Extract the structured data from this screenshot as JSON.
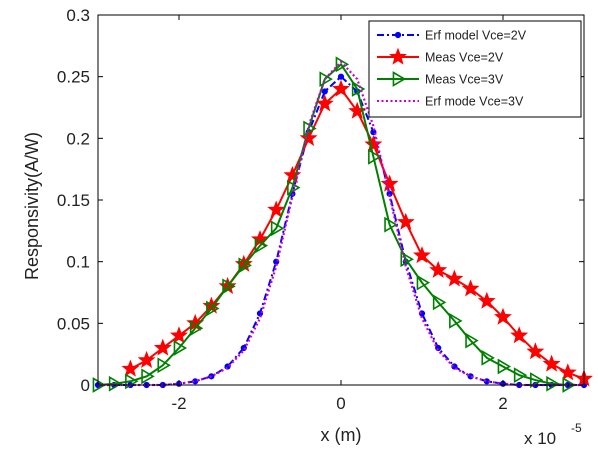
{
  "chart_data": {
    "type": "line",
    "xlabel": "x (m)",
    "ylabel": "Responsivity(A/W)",
    "x_multiplier_label": "x 10",
    "x_multiplier_exponent": "-5",
    "xlim": [
      -3,
      3
    ],
    "ylim": [
      0,
      0.3
    ],
    "x_ticks": [
      -2,
      0,
      2
    ],
    "x_tick_labels": [
      "-2",
      "0",
      "2"
    ],
    "y_ticks": [
      0,
      0.05,
      0.1,
      0.15,
      0.2,
      0.25,
      0.3
    ],
    "y_tick_labels": [
      "0",
      "0.05",
      "0.1",
      "0.15",
      "0.2",
      "0.25",
      "0.3"
    ],
    "grid": false,
    "legend_position": "top-right",
    "series": [
      {
        "name": "Erf model Vce=2V",
        "color": "#0000ff",
        "line_style": "dash-dot",
        "marker": "dot",
        "x": [
          -3.0,
          -2.8,
          -2.6,
          -2.4,
          -2.2,
          -2.0,
          -1.8,
          -1.6,
          -1.4,
          -1.2,
          -1.0,
          -0.8,
          -0.6,
          -0.4,
          -0.2,
          0.0,
          0.2,
          0.4,
          0.6,
          0.8,
          1.0,
          1.2,
          1.4,
          1.6,
          1.8,
          2.0,
          2.2,
          2.4,
          2.6,
          2.8,
          3.0
        ],
        "y": [
          0.0,
          0.0,
          0.0,
          0.0,
          0.0,
          0.001,
          0.003,
          0.007,
          0.015,
          0.03,
          0.058,
          0.1,
          0.155,
          0.205,
          0.238,
          0.25,
          0.238,
          0.205,
          0.155,
          0.1,
          0.058,
          0.03,
          0.015,
          0.007,
          0.003,
          0.001,
          0.0,
          0.0,
          0.0,
          0.0,
          0.0
        ]
      },
      {
        "name": "Meas  Vce=2V",
        "color": "#ff0000",
        "line_style": "solid",
        "marker": "star",
        "x": [
          -2.6,
          -2.4,
          -2.2,
          -2.0,
          -1.8,
          -1.6,
          -1.4,
          -1.2,
          -1.0,
          -0.8,
          -0.6,
          -0.4,
          -0.2,
          0.0,
          0.2,
          0.4,
          0.6,
          0.8,
          1.0,
          1.2,
          1.4,
          1.6,
          1.8,
          2.0,
          2.2,
          2.4,
          2.6,
          2.8,
          3.0
        ],
        "y": [
          0.013,
          0.02,
          0.03,
          0.04,
          0.05,
          0.064,
          0.08,
          0.098,
          0.118,
          0.142,
          0.17,
          0.2,
          0.228,
          0.24,
          0.222,
          0.195,
          0.163,
          0.132,
          0.105,
          0.093,
          0.086,
          0.078,
          0.068,
          0.055,
          0.04,
          0.027,
          0.017,
          0.01,
          0.005
        ]
      },
      {
        "name": "Meas  Vce=3V",
        "color": "#008000",
        "line_style": "solid",
        "marker": "triangle-right",
        "x": [
          -3.0,
          -2.8,
          -2.6,
          -2.4,
          -2.2,
          -2.0,
          -1.8,
          -1.6,
          -1.4,
          -1.2,
          -1.0,
          -0.8,
          -0.6,
          -0.4,
          -0.2,
          0.0,
          0.2,
          0.4,
          0.6,
          0.8,
          1.0,
          1.2,
          1.4,
          1.6,
          1.8,
          2.0,
          2.2,
          2.4,
          2.6,
          2.8
        ],
        "y": [
          0.0,
          0.001,
          0.003,
          0.007,
          0.016,
          0.03,
          0.046,
          0.062,
          0.08,
          0.097,
          0.113,
          0.127,
          0.16,
          0.208,
          0.248,
          0.26,
          0.24,
          0.185,
          0.13,
          0.102,
          0.083,
          0.067,
          0.052,
          0.036,
          0.022,
          0.015,
          0.008,
          0.004,
          0.001,
          0.0
        ]
      },
      {
        "name": "Erf mode Vce=3V",
        "color": "#cc00cc",
        "line_style": "dotted",
        "marker": "none",
        "x": [
          -3.0,
          -2.8,
          -2.6,
          -2.4,
          -2.2,
          -2.0,
          -1.8,
          -1.6,
          -1.4,
          -1.2,
          -1.0,
          -0.8,
          -0.6,
          -0.4,
          -0.2,
          0.0,
          0.2,
          0.4,
          0.6,
          0.8,
          1.0,
          1.2,
          1.4,
          1.6,
          1.8,
          2.0,
          2.2,
          2.4,
          2.6,
          2.8,
          3.0
        ],
        "y": [
          0.0,
          0.0,
          0.0,
          0.0,
          0.0,
          0.001,
          0.003,
          0.007,
          0.014,
          0.028,
          0.054,
          0.096,
          0.153,
          0.21,
          0.248,
          0.262,
          0.248,
          0.21,
          0.153,
          0.096,
          0.054,
          0.028,
          0.014,
          0.007,
          0.003,
          0.001,
          0.0,
          0.0,
          0.0,
          0.0,
          0.0
        ]
      }
    ]
  }
}
